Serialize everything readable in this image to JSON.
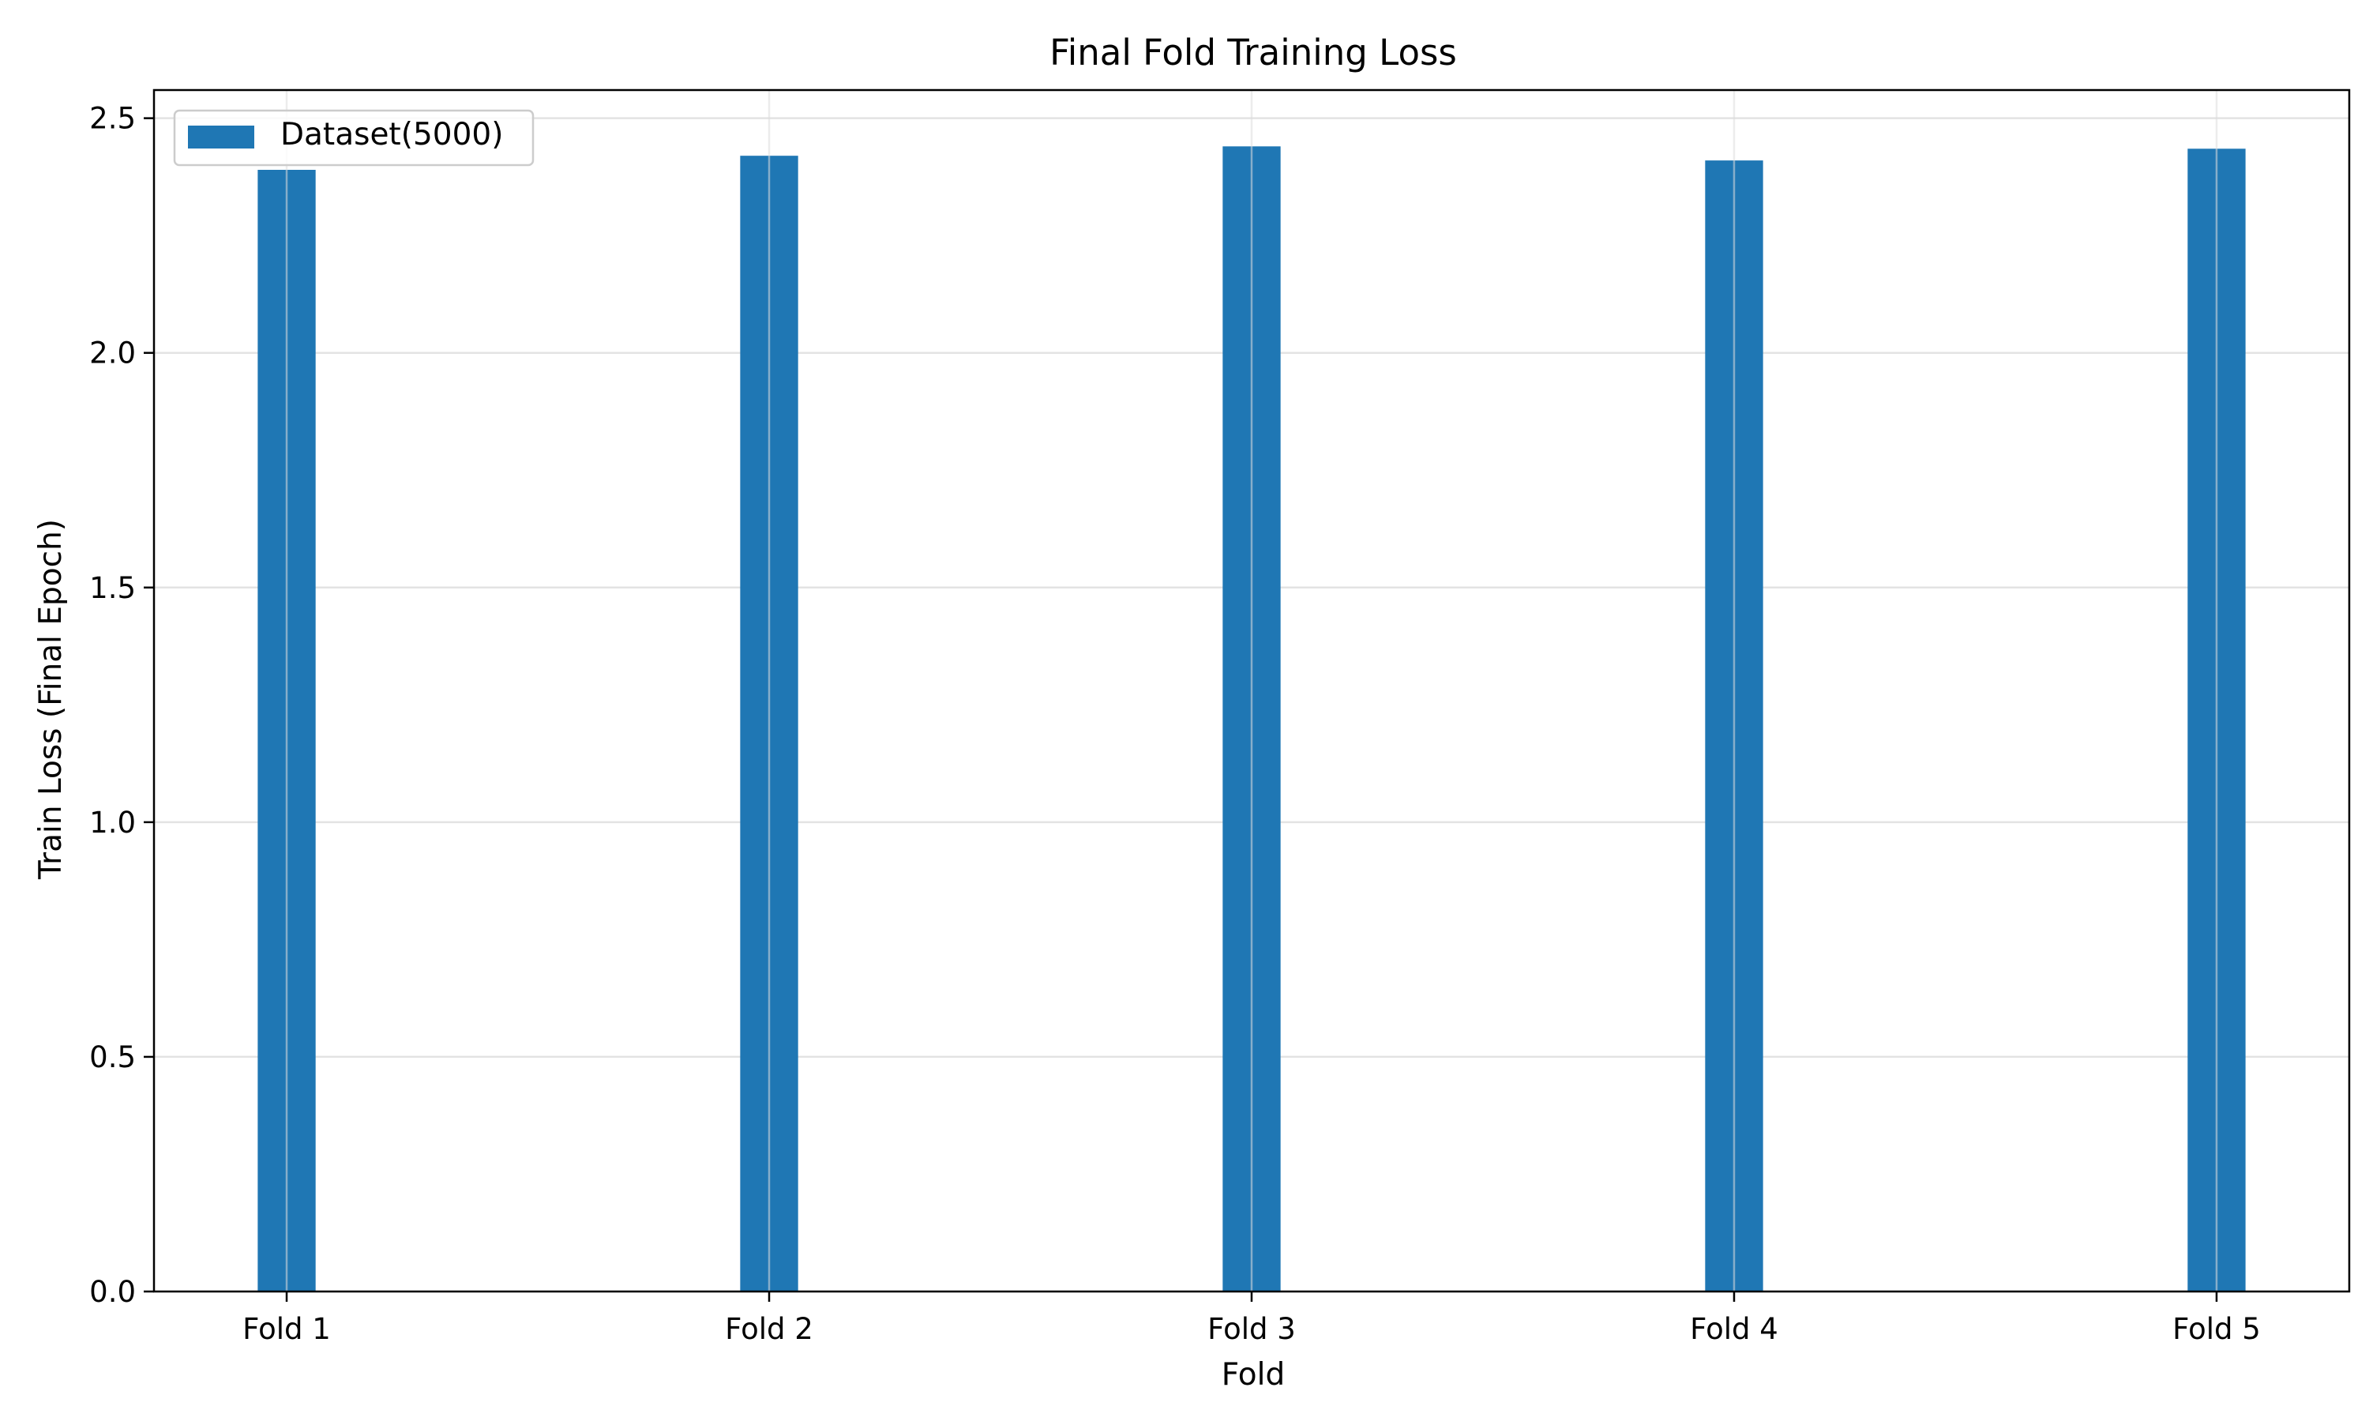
{
  "chart_data": {
    "type": "bar",
    "title": "Final Fold Training Loss",
    "xlabel": "Fold",
    "ylabel": "Train Loss (Final Epoch)",
    "categories": [
      "Fold 1",
      "Fold 2",
      "Fold 3",
      "Fold 4",
      "Fold 5"
    ],
    "series": [
      {
        "name": "Dataset(5000)",
        "values": [
          2.39,
          2.42,
          2.44,
          2.41,
          2.435
        ],
        "color": "#1f77b4"
      }
    ],
    "ylim": [
      0,
      2.56
    ],
    "yticks": [
      0.0,
      0.5,
      1.0,
      1.5,
      2.0,
      2.5
    ],
    "ytick_labels": [
      "0.0",
      "0.5",
      "1.0",
      "1.5",
      "2.0",
      "2.5"
    ],
    "grid": true,
    "legend_position": "upper-left"
  }
}
